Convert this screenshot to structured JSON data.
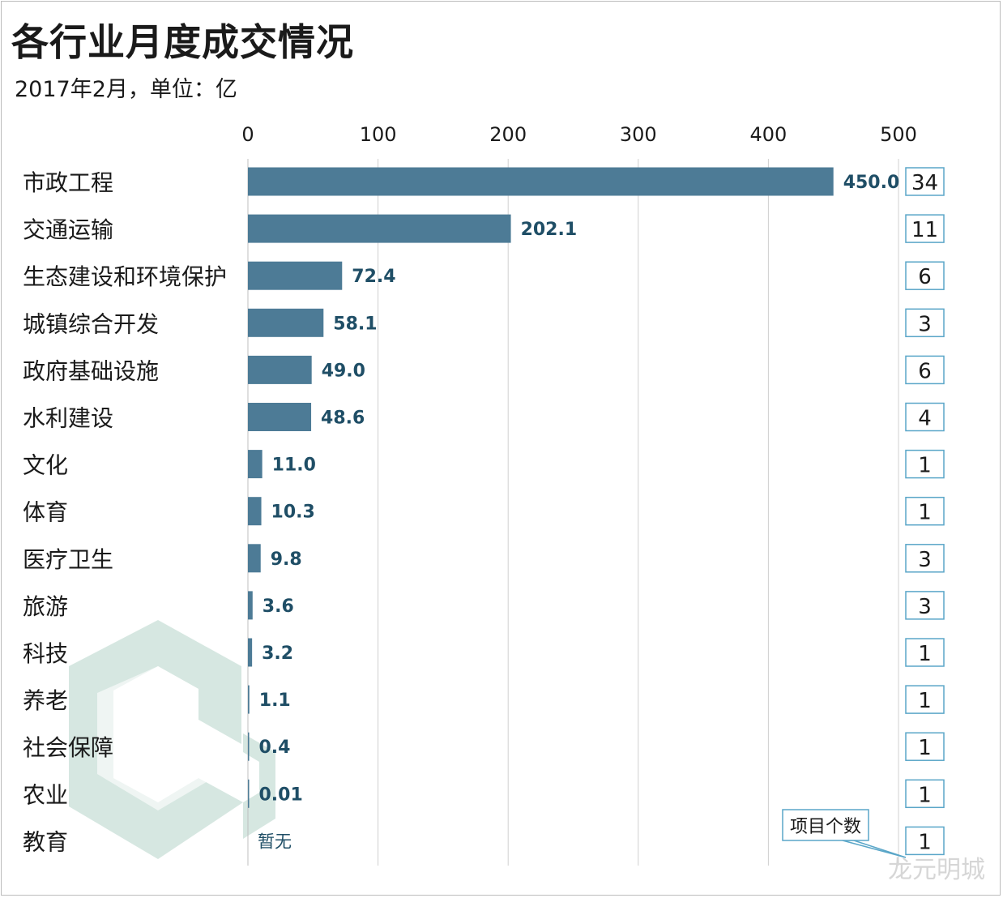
{
  "title": "各行业月度成交情况",
  "subtitle": "2017年2月，单位：亿",
  "legend_callout": "项目个数",
  "watermark": "龙元明城",
  "colors": {
    "bar": "#4d7b96",
    "value_label": "#1f4e66",
    "count_box": "#5aa6c8",
    "grid": "#d0d0d0",
    "logo": "#cfe3dc"
  },
  "chart_data": {
    "type": "bar",
    "orientation": "horizontal",
    "xlim": [
      0,
      500
    ],
    "x_ticks": [
      0,
      100,
      200,
      300,
      400,
      500
    ],
    "grid": true,
    "categories": [
      "市政工程",
      "交通运输",
      "生态建设和环境保护",
      "城镇综合开发",
      "政府基础设施",
      "水利建设",
      "文化",
      "体育",
      "医疗卫生",
      "旅游",
      "科技",
      "养老",
      "社会保障",
      "农业",
      "教育"
    ],
    "values": [
      450.0,
      202.1,
      72.4,
      58.1,
      49.0,
      48.6,
      11.0,
      10.3,
      9.8,
      3.6,
      3.2,
      1.1,
      0.4,
      0.01,
      null
    ],
    "value_labels": [
      "450.0",
      "202.1",
      "72.4",
      "58.1",
      "49.0",
      "48.6",
      "11.0",
      "10.3",
      "9.8",
      "3.6",
      "3.2",
      "1.1",
      "0.4",
      "0.01",
      "暂无"
    ],
    "project_counts": [
      "34",
      "11",
      "6",
      "3",
      "6",
      "4",
      "1",
      "1",
      "3",
      "3",
      "1",
      "1",
      "1",
      "1",
      "1"
    ]
  }
}
